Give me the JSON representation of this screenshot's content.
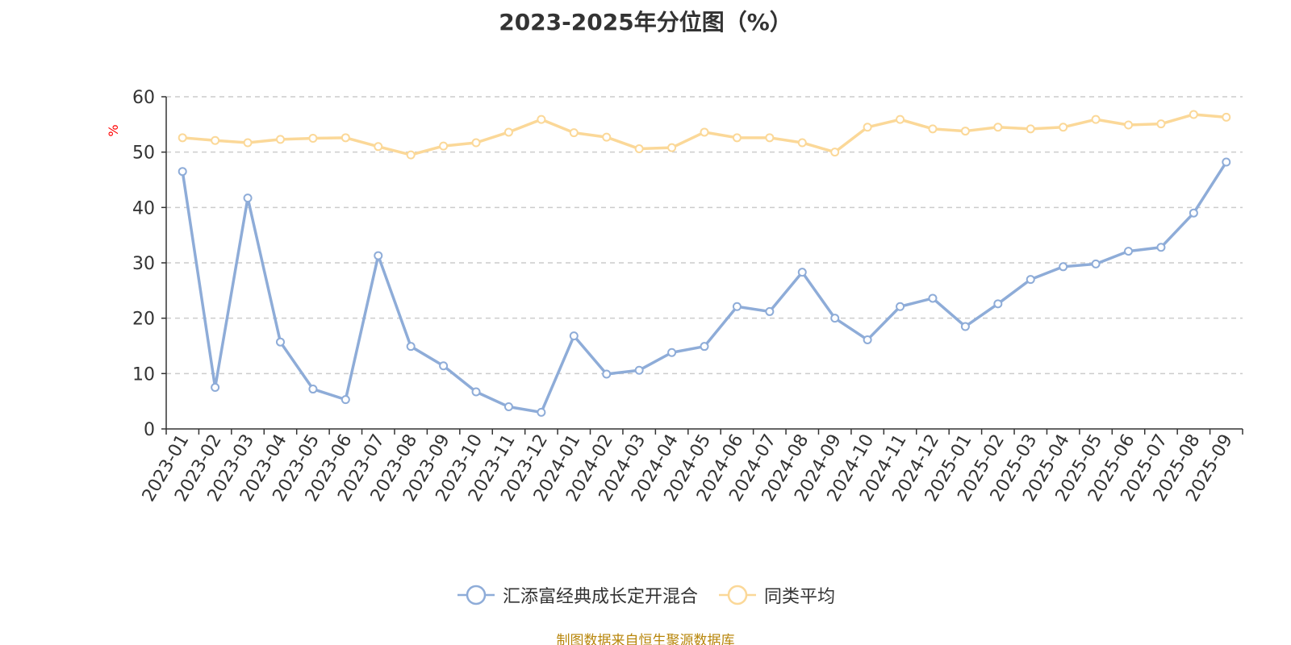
{
  "chart_data": {
    "type": "line",
    "title": "2023-2025年分位图（%）",
    "ylabel": "%",
    "xlabel": "",
    "ylim": [
      0,
      60
    ],
    "yticks": [
      0,
      10,
      20,
      30,
      40,
      50,
      60
    ],
    "grid": true,
    "legend_position": "bottom",
    "categories": [
      "2023-01",
      "2023-02",
      "2023-03",
      "2023-04",
      "2023-05",
      "2023-06",
      "2023-07",
      "2023-08",
      "2023-09",
      "2023-10",
      "2023-11",
      "2023-12",
      "2024-01",
      "2024-02",
      "2024-03",
      "2024-04",
      "2024-05",
      "2024-06",
      "2024-07",
      "2024-08",
      "2024-09",
      "2024-10",
      "2024-11",
      "2024-12",
      "2025-01",
      "2025-02",
      "2025-03",
      "2025-04",
      "2025-05",
      "2025-06",
      "2025-07",
      "2025-08",
      "2025-09"
    ],
    "series": [
      {
        "name": "汇添富经典成长定开混合",
        "color": "#8eacd8",
        "values": [
          46.5,
          7.5,
          41.7,
          15.7,
          7.2,
          5.3,
          31.3,
          14.9,
          11.4,
          6.7,
          4.0,
          3.0,
          16.8,
          9.9,
          10.6,
          13.8,
          14.9,
          22.1,
          21.2,
          28.3,
          20.0,
          16.1,
          22.1,
          23.6,
          18.5,
          22.6,
          27.0,
          29.3,
          29.8,
          32.1,
          32.8,
          39.0,
          48.2
        ]
      },
      {
        "name": "同类平均",
        "color": "#fbd898",
        "values": [
          52.6,
          52.1,
          51.7,
          52.3,
          52.5,
          52.6,
          51.0,
          49.5,
          51.1,
          51.7,
          53.6,
          55.9,
          53.5,
          52.7,
          50.6,
          50.8,
          53.6,
          52.6,
          52.6,
          51.7,
          50.0,
          54.5,
          55.9,
          54.2,
          53.8,
          54.5,
          54.2,
          54.5,
          55.9,
          54.9,
          55.1,
          56.8,
          56.3
        ]
      }
    ]
  },
  "source": "制图数据来自恒生聚源数据库"
}
